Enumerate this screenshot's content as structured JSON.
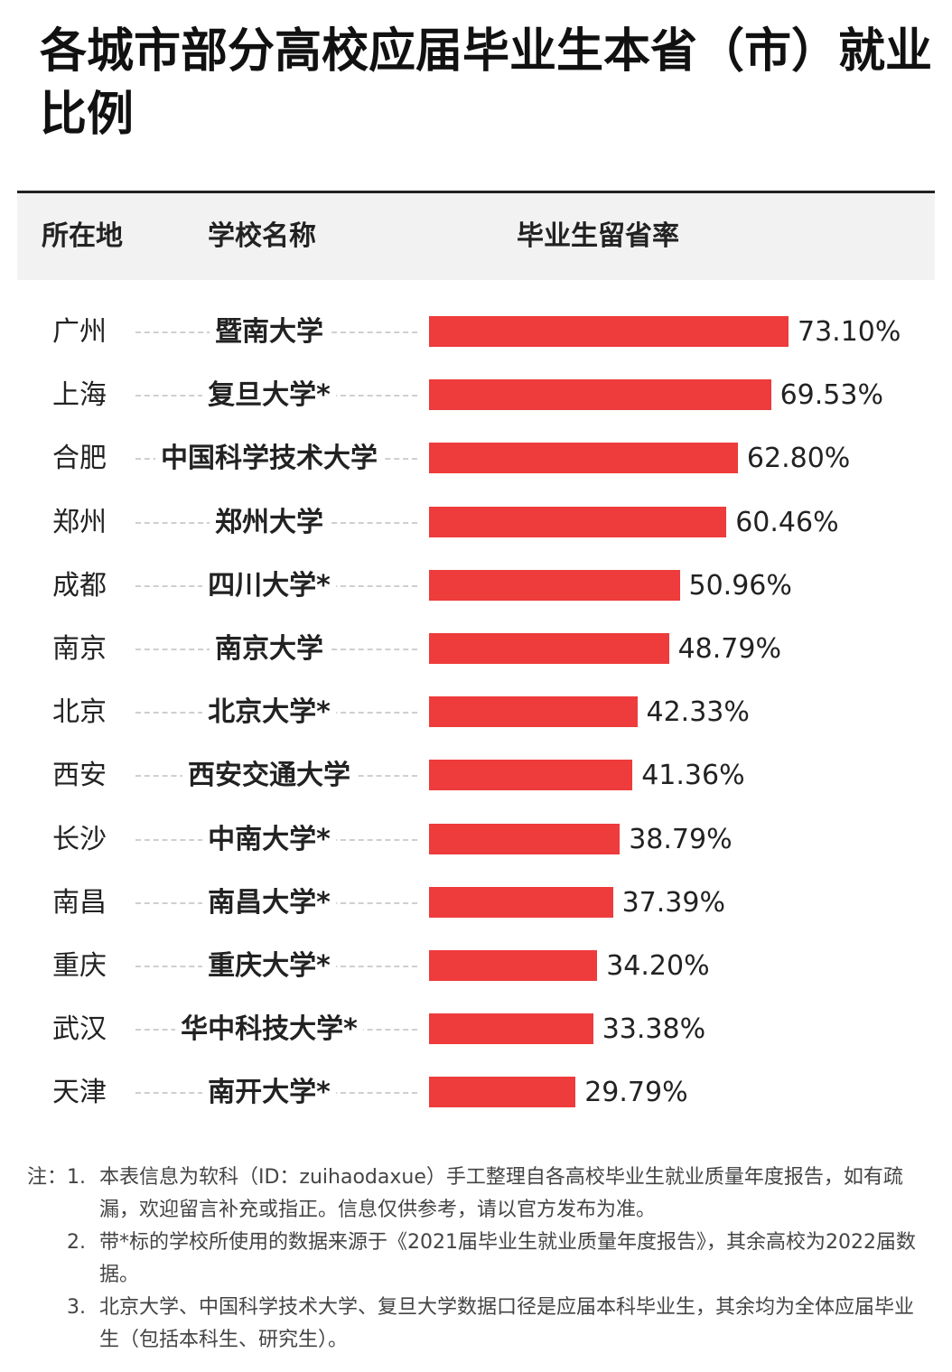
{
  "title": "各城市部分高校应届毕业生本省（市）就业比例",
  "header": {
    "col_city": "所在地",
    "col_school": "学校名称",
    "col_rate": "毕业生留省率"
  },
  "chart_data": {
    "type": "bar",
    "orientation": "horizontal",
    "cities": [
      "广州",
      "上海",
      "合肥",
      "郑州",
      "成都",
      "南京",
      "北京",
      "西安",
      "长沙",
      "南昌",
      "重庆",
      "武汉",
      "天津"
    ],
    "categories": [
      "暨南大学",
      "复旦大学*",
      "中国科学技术大学",
      "郑州大学",
      "四川大学*",
      "南京大学",
      "北京大学*",
      "西安交通大学",
      "中南大学*",
      "南昌大学*",
      "重庆大学*",
      "华中科技大学*",
      "南开大学*"
    ],
    "values": [
      73.1,
      69.53,
      62.8,
      60.46,
      50.96,
      48.79,
      42.33,
      41.36,
      38.79,
      37.39,
      34.2,
      33.38,
      29.79
    ],
    "labels": [
      "73.10%",
      "69.53%",
      "62.80%",
      "60.46%",
      "50.96%",
      "48.79%",
      "42.33%",
      "41.36%",
      "38.79%",
      "37.39%",
      "34.20%",
      "33.38%",
      "29.79%"
    ],
    "unit": "%",
    "bar_color": "#ee3b3b"
  },
  "notes": {
    "prefix": "注：",
    "items": [
      {
        "num": "1.",
        "text": "本表信息为软科（ID：zuihaodaxue）手工整理自各高校毕业生就业质量年度报告，如有疏漏，欢迎留言补充或指正。信息仅供参考，请以官方发布为准。"
      },
      {
        "num": "2.",
        "text": "带*标的学校所使用的数据来源于《2021届毕业生就业质量年度报告》，其余高校为2022届数据。"
      },
      {
        "num": "3.",
        "text": "北京大学、中国科学技术大学、复旦大学数据口径是应届本科毕业生，其余均为全体应届毕业生（包括本科生、研究生）。"
      }
    ]
  }
}
